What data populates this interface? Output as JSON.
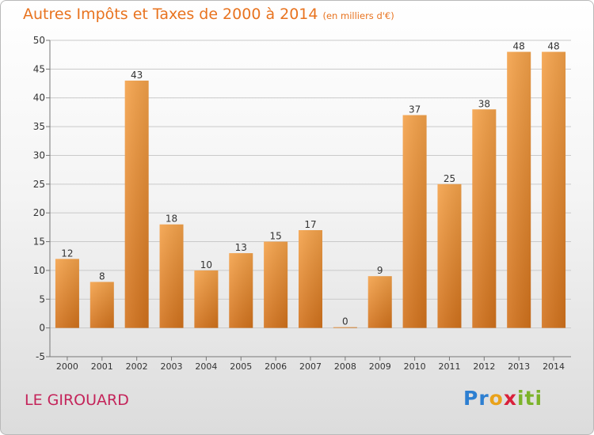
{
  "header": {
    "title": "Autres Impôts et Taxes de 2000 à 2014",
    "subtitle": "(en milliers d'€)"
  },
  "footer": {
    "commune": "LE GIROUARD",
    "logo_text": "Proxiti"
  },
  "colors": {
    "title": "#e8731f",
    "bar_light": "#f4a24a",
    "bar_dark": "#d2721c",
    "commune": "#c4245a"
  },
  "chart_data": {
    "type": "bar",
    "title": "Autres Impôts et Taxes de 2000 à 2014",
    "subtitle": "(en milliers d'€)",
    "categories": [
      "2000",
      "2001",
      "2002",
      "2003",
      "2004",
      "2005",
      "2006",
      "2007",
      "2008",
      "2009",
      "2010",
      "2011",
      "2012",
      "2013",
      "2014"
    ],
    "values": [
      12,
      8,
      43,
      18,
      10,
      13,
      15,
      17,
      0,
      9,
      37,
      25,
      38,
      48,
      48
    ],
    "xlabel": "",
    "ylabel": "",
    "ylim": [
      -5,
      50
    ],
    "yticks": [
      -5,
      0,
      5,
      10,
      15,
      20,
      25,
      30,
      35,
      40,
      45,
      50
    ],
    "grid": true,
    "legend": "none"
  }
}
